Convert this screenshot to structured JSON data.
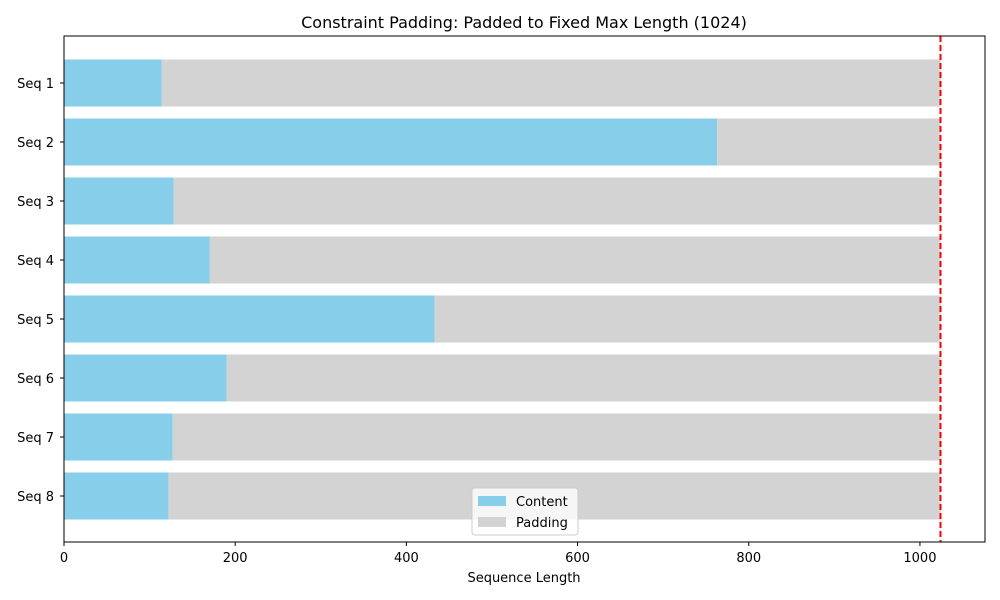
{
  "chart_data": {
    "type": "bar",
    "orientation": "horizontal",
    "stacked": true,
    "title": "Constraint Padding: Padded to Fixed Max Length (1024)",
    "xlabel": "Sequence Length",
    "ylabel": "",
    "categories": [
      "Seq 1",
      "Seq 2",
      "Seq 3",
      "Seq 4",
      "Seq 5",
      "Seq 6",
      "Seq 7",
      "Seq 8"
    ],
    "series": [
      {
        "name": "Content",
        "color": "#87ceeb",
        "values": [
          114,
          763,
          128,
          170,
          433,
          190,
          127,
          122
        ]
      },
      {
        "name": "Padding",
        "color": "#d3d3d3",
        "values": [
          910,
          261,
          896,
          854,
          591,
          834,
          897,
          902
        ]
      }
    ],
    "xlim": [
      0,
      1076
    ],
    "xticks": [
      0,
      200,
      400,
      600,
      800,
      1000
    ],
    "reference_line": {
      "value": 1024,
      "color": "#ff0000",
      "style": "dashed"
    },
    "legend_position": "bottom-center",
    "grid": false
  }
}
